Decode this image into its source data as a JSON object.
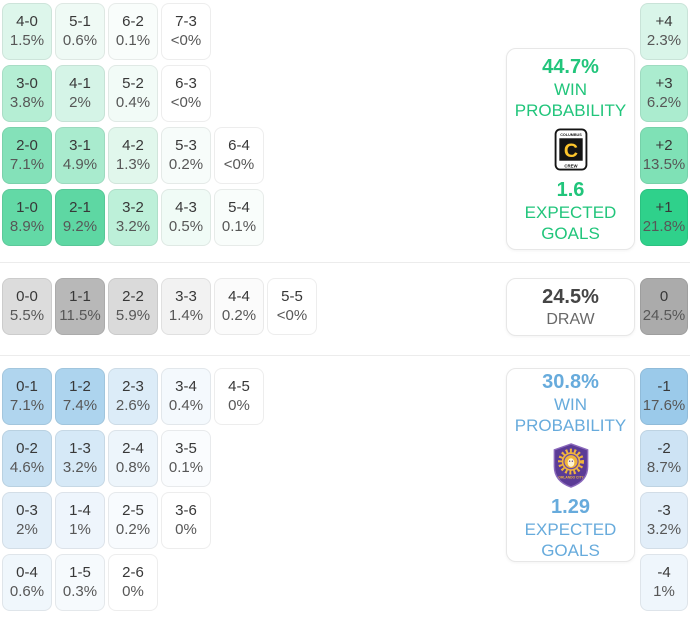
{
  "theme": {
    "home_accent": "#21c57b",
    "away_accent": "#67abdc",
    "draw_text": "#454545",
    "divider": "#ececec",
    "crew_black": "#141414",
    "crew_yellow": "#fdc52c",
    "orlando_purple": "#5b3b96",
    "orlando_gold": "#f0b53c"
  },
  "home": {
    "panel": {
      "probability": "44.7%",
      "label_line1": "WIN",
      "label_line2": "PROBABILITY",
      "expected_goals": "1.6",
      "xg_label_line1": "EXPECTED",
      "xg_label_line2": "GOALS",
      "team": "Columbus Crew"
    },
    "rows": [
      [
        {
          "score": "4-0",
          "pct": "1.5%",
          "bg": "#ddf6eb"
        },
        {
          "score": "5-1",
          "pct": "0.6%",
          "bg": "#effaf5"
        },
        {
          "score": "6-2",
          "pct": "0.1%",
          "bg": "#f9fdfb"
        },
        {
          "score": "7-3",
          "pct": "<0%",
          "bg": "#ffffff"
        }
      ],
      [
        {
          "score": "3-0",
          "pct": "3.8%",
          "bg": "#b5eed4"
        },
        {
          "score": "4-1",
          "pct": "2%",
          "bg": "#d5f4e7"
        },
        {
          "score": "5-2",
          "pct": "0.4%",
          "bg": "#f2fbf7"
        },
        {
          "score": "6-3",
          "pct": "<0%",
          "bg": "#ffffff"
        }
      ],
      [
        {
          "score": "2-0",
          "pct": "7.1%",
          "bg": "#84e1b9"
        },
        {
          "score": "3-1",
          "pct": "4.9%",
          "bg": "#a9ebce"
        },
        {
          "score": "4-2",
          "pct": "1.3%",
          "bg": "#e1f7ec"
        },
        {
          "score": "5-3",
          "pct": "0.2%",
          "bg": "#f7fcfa"
        },
        {
          "score": "6-4",
          "pct": "<0%",
          "bg": "#ffffff"
        }
      ],
      [
        {
          "score": "1-0",
          "pct": "8.9%",
          "bg": "#63d9a6"
        },
        {
          "score": "2-1",
          "pct": "9.2%",
          "bg": "#5ed7a3"
        },
        {
          "score": "3-2",
          "pct": "3.2%",
          "bg": "#bdf0d9"
        },
        {
          "score": "4-3",
          "pct": "0.5%",
          "bg": "#f0fbf6"
        },
        {
          "score": "5-4",
          "pct": "0.1%",
          "bg": "#f9fdfb"
        }
      ]
    ],
    "margins": [
      {
        "diff": "+4",
        "pct": "2.3%",
        "bg": "#d9f5e9"
      },
      {
        "diff": "+3",
        "pct": "6.2%",
        "bg": "#abeccf"
      },
      {
        "diff": "+2",
        "pct": "13.5%",
        "bg": "#7fe1b6"
      },
      {
        "diff": "+1",
        "pct": "21.8%",
        "bg": "#2fd18b"
      }
    ]
  },
  "draw": {
    "panel": {
      "probability": "24.5%",
      "label": "DRAW"
    },
    "cells": [
      {
        "score": "0-0",
        "pct": "5.5%",
        "bg": "#dcdcdc"
      },
      {
        "score": "1-1",
        "pct": "11.5%",
        "bg": "#b8b8b8"
      },
      {
        "score": "2-2",
        "pct": "5.9%",
        "bg": "#dadada"
      },
      {
        "score": "3-3",
        "pct": "1.4%",
        "bg": "#f2f2f2"
      },
      {
        "score": "4-4",
        "pct": "0.2%",
        "bg": "#fbfbfb"
      },
      {
        "score": "5-5",
        "pct": "<0%",
        "bg": "#ffffff"
      }
    ],
    "margin": {
      "diff": "0",
      "pct": "24.5%",
      "bg": "#ababab"
    }
  },
  "away": {
    "panel": {
      "probability": "30.8%",
      "label_line1": "WIN",
      "label_line2": "PROBABILITY",
      "expected_goals": "1.29",
      "xg_label_line1": "EXPECTED",
      "xg_label_line2": "GOALS",
      "team": "Orlando City"
    },
    "rows": [
      [
        {
          "score": "0-1",
          "pct": "7.1%",
          "bg": "#b0d5ee"
        },
        {
          "score": "1-2",
          "pct": "7.4%",
          "bg": "#add4ee"
        },
        {
          "score": "2-3",
          "pct": "2.6%",
          "bg": "#dcecf8"
        },
        {
          "score": "3-4",
          "pct": "0.4%",
          "bg": "#f4f9fd"
        },
        {
          "score": "4-5",
          "pct": "0%",
          "bg": "#ffffff"
        }
      ],
      [
        {
          "score": "0-2",
          "pct": "4.6%",
          "bg": "#c8e1f3"
        },
        {
          "score": "1-3",
          "pct": "3.2%",
          "bg": "#d6e9f7"
        },
        {
          "score": "2-4",
          "pct": "0.8%",
          "bg": "#edf5fb"
        },
        {
          "score": "3-5",
          "pct": "0.1%",
          "bg": "#fafcfe"
        }
      ],
      [
        {
          "score": "0-3",
          "pct": "2%",
          "bg": "#e3eff9"
        },
        {
          "score": "1-4",
          "pct": "1%",
          "bg": "#eef5fc"
        },
        {
          "score": "2-5",
          "pct": "0.2%",
          "bg": "#f8fbfe"
        },
        {
          "score": "3-6",
          "pct": "0%",
          "bg": "#ffffff"
        }
      ],
      [
        {
          "score": "0-4",
          "pct": "0.6%",
          "bg": "#f0f7fc"
        },
        {
          "score": "1-5",
          "pct": "0.3%",
          "bg": "#f6fafd"
        },
        {
          "score": "2-6",
          "pct": "0%",
          "bg": "#ffffff"
        }
      ]
    ],
    "margins": [
      {
        "diff": "-1",
        "pct": "17.6%",
        "bg": "#9bcaea"
      },
      {
        "diff": "-2",
        "pct": "8.7%",
        "bg": "#cde3f4"
      },
      {
        "diff": "-3",
        "pct": "3.2%",
        "bg": "#e2eef9"
      },
      {
        "diff": "-4",
        "pct": "1%",
        "bg": "#eff6fc"
      }
    ]
  },
  "logos": {
    "crew": {
      "top_text": "COLUMBUS",
      "bottom_text": "CREW",
      "letter": "C"
    },
    "orlando": {
      "text": "ORLANDO CITY"
    }
  },
  "chart_data": {
    "type": "heatmap",
    "title": "Correct-score and goal-margin probability matrix",
    "sections": [
      {
        "name": "home_win",
        "team": "Columbus Crew",
        "win_probability_pct": 44.7,
        "expected_goals": 1.6,
        "scores": [
          {
            "score": "4-0",
            "pct": "1.5%"
          },
          {
            "score": "5-1",
            "pct": "0.6%"
          },
          {
            "score": "6-2",
            "pct": "0.1%"
          },
          {
            "score": "7-3",
            "pct": "<0%"
          },
          {
            "score": "3-0",
            "pct": "3.8%"
          },
          {
            "score": "4-1",
            "pct": "2%"
          },
          {
            "score": "5-2",
            "pct": "0.4%"
          },
          {
            "score": "6-3",
            "pct": "<0%"
          },
          {
            "score": "2-0",
            "pct": "7.1%"
          },
          {
            "score": "3-1",
            "pct": "4.9%"
          },
          {
            "score": "4-2",
            "pct": "1.3%"
          },
          {
            "score": "5-3",
            "pct": "0.2%"
          },
          {
            "score": "6-4",
            "pct": "<0%"
          },
          {
            "score": "1-0",
            "pct": "8.9%"
          },
          {
            "score": "2-1",
            "pct": "9.2%"
          },
          {
            "score": "3-2",
            "pct": "3.2%"
          },
          {
            "score": "4-3",
            "pct": "0.5%"
          },
          {
            "score": "5-4",
            "pct": "0.1%"
          }
        ]
      },
      {
        "name": "draw",
        "probability_pct": 24.5,
        "scores": [
          {
            "score": "0-0",
            "pct": "5.5%"
          },
          {
            "score": "1-1",
            "pct": "11.5%"
          },
          {
            "score": "2-2",
            "pct": "5.9%"
          },
          {
            "score": "3-3",
            "pct": "1.4%"
          },
          {
            "score": "4-4",
            "pct": "0.2%"
          },
          {
            "score": "5-5",
            "pct": "<0%"
          }
        ]
      },
      {
        "name": "away_win",
        "team": "Orlando City",
        "win_probability_pct": 30.8,
        "expected_goals": 1.29,
        "scores": [
          {
            "score": "0-1",
            "pct": "7.1%"
          },
          {
            "score": "1-2",
            "pct": "7.4%"
          },
          {
            "score": "2-3",
            "pct": "2.6%"
          },
          {
            "score": "3-4",
            "pct": "0.4%"
          },
          {
            "score": "4-5",
            "pct": "0%"
          },
          {
            "score": "0-2",
            "pct": "4.6%"
          },
          {
            "score": "1-3",
            "pct": "3.2%"
          },
          {
            "score": "2-4",
            "pct": "0.8%"
          },
          {
            "score": "3-5",
            "pct": "0.1%"
          },
          {
            "score": "0-3",
            "pct": "2%"
          },
          {
            "score": "1-4",
            "pct": "1%"
          },
          {
            "score": "2-5",
            "pct": "0.2%"
          },
          {
            "score": "3-6",
            "pct": "0%"
          },
          {
            "score": "0-4",
            "pct": "0.6%"
          },
          {
            "score": "1-5",
            "pct": "0.3%"
          },
          {
            "score": "2-6",
            "pct": "0%"
          }
        ]
      }
    ],
    "goal_margins": [
      {
        "margin": "+4",
        "pct": "2.3%"
      },
      {
        "margin": "+3",
        "pct": "6.2%"
      },
      {
        "margin": "+2",
        "pct": "13.5%"
      },
      {
        "margin": "+1",
        "pct": "21.8%"
      },
      {
        "margin": "0",
        "pct": "24.5%"
      },
      {
        "margin": "-1",
        "pct": "17.6%"
      },
      {
        "margin": "-2",
        "pct": "8.7%"
      },
      {
        "margin": "-3",
        "pct": "3.2%"
      },
      {
        "margin": "-4",
        "pct": "1%"
      }
    ]
  }
}
